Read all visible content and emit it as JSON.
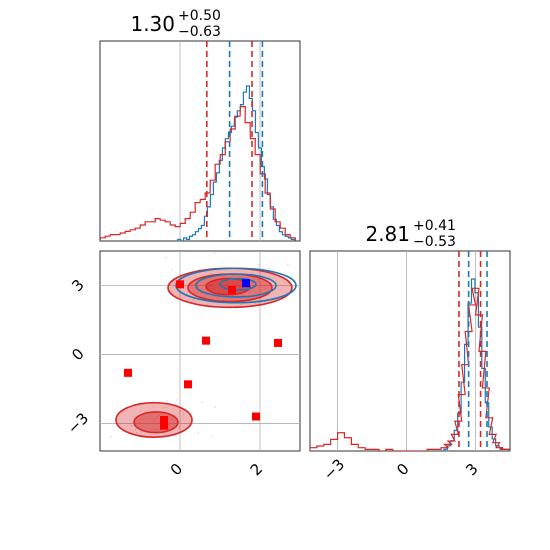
{
  "chart_data": {
    "type": "corner",
    "grid": true,
    "colors": {
      "model_a": "#1f77b4",
      "model_b": "#d62728",
      "grid": "#b0b0b0",
      "marker_blue": "#0000ff",
      "marker_red": "#ff0000"
    },
    "panels": {
      "top_left": {
        "type": "histogram",
        "title": {
          "main": "1.30",
          "plus": "+0.50",
          "minus": "−0.63"
        },
        "xlim": [
          -2.0,
          3.0
        ],
        "quantiles_a": [
          1.24,
          2.06
        ],
        "quantiles_b": [
          0.67,
          1.8
        ],
        "hist_a": {
          "x": [
            -0.02,
            0.05,
            0.13,
            0.2,
            0.27,
            0.35,
            0.42,
            0.5,
            0.57,
            0.65,
            0.72,
            0.8,
            0.87,
            0.95,
            1.02,
            1.1,
            1.17,
            1.25,
            1.32,
            1.4,
            1.47,
            1.55,
            1.62,
            1.7,
            1.77,
            1.85,
            1.92,
            2.0,
            2.07,
            2.15,
            2.22,
            2.3,
            2.37,
            2.45,
            2.52,
            2.6,
            2.67,
            2.75,
            2.82
          ],
          "counts": [
            1,
            0,
            2,
            1,
            3,
            4,
            6,
            8,
            10,
            16,
            22,
            30,
            38,
            44,
            52,
            60,
            66,
            70,
            74,
            80,
            84,
            88,
            96,
            100,
            92,
            84,
            70,
            60,
            48,
            40,
            30,
            22,
            14,
            10,
            6,
            4,
            3,
            2,
            1
          ]
        },
        "hist_b": {
          "x": [
            -1.93,
            -1.81,
            -1.68,
            -1.56,
            -1.43,
            -1.31,
            -1.18,
            -1.06,
            -0.93,
            -0.81,
            -0.68,
            -0.56,
            -0.43,
            -0.31,
            -0.18,
            -0.06,
            0.07,
            0.19,
            0.32,
            0.44,
            0.57,
            0.69,
            0.82,
            0.94,
            1.07,
            1.19,
            1.32,
            1.44,
            1.57,
            1.69,
            1.82,
            1.94,
            2.07,
            2.19,
            2.32,
            2.44,
            2.57,
            2.69,
            2.82
          ],
          "counts": [
            2,
            3,
            4,
            4,
            5,
            6,
            7,
            8,
            10,
            12,
            12,
            14,
            13,
            12,
            10,
            9,
            11,
            14,
            18,
            24,
            26,
            30,
            38,
            48,
            54,
            62,
            70,
            78,
            84,
            74,
            64,
            54,
            42,
            30,
            20,
            12,
            8,
            4,
            2
          ]
        }
      },
      "bottom_left": {
        "type": "scatter-contour",
        "xlim": [
          -2.0,
          3.0
        ],
        "ylim": [
          -4.2,
          4.5
        ],
        "xticks": [
          0,
          2
        ],
        "yticks": [
          -3,
          0,
          3
        ],
        "xtick_labels": [
          "0",
          "2"
        ],
        "ytick_labels": [
          "−3",
          "0",
          "3"
        ],
        "contours_a": [
          {
            "cx": 1.4,
            "cy": 3.0,
            "rx": 1.5,
            "ry": 0.75
          },
          {
            "cx": 1.4,
            "cy": 3.0,
            "rx": 1.0,
            "ry": 0.5
          },
          {
            "cx": 1.45,
            "cy": 3.05,
            "rx": 0.45,
            "ry": 0.25
          }
        ],
        "contours_b": [
          {
            "cx": 1.25,
            "cy": 2.9,
            "rx": 1.55,
            "ry": 0.85,
            "fill_opacity": 0.35
          },
          {
            "cx": 1.25,
            "cy": 2.9,
            "rx": 1.05,
            "ry": 0.6,
            "fill_opacity": 0.45
          },
          {
            "cx": 1.2,
            "cy": 2.95,
            "rx": 0.55,
            "ry": 0.35,
            "fill_opacity": 0.55
          },
          {
            "cx": -0.65,
            "cy": -2.85,
            "rx": 0.95,
            "ry": 0.75,
            "fill_opacity": 0.35
          },
          {
            "cx": -0.6,
            "cy": -2.95,
            "rx": 0.55,
            "ry": 0.45,
            "fill_opacity": 0.5
          }
        ],
        "points_red": [
          {
            "x": 0.0,
            "y": 3.05
          },
          {
            "x": 1.3,
            "y": 2.8
          },
          {
            "x": 0.65,
            "y": 0.6
          },
          {
            "x": 2.45,
            "y": 0.5
          },
          {
            "x": -1.3,
            "y": -0.8
          },
          {
            "x": 0.2,
            "y": -1.3
          },
          {
            "x": 1.9,
            "y": -2.7
          },
          {
            "x": -0.4,
            "y": -2.85
          },
          {
            "x": -0.4,
            "y": -3.1
          }
        ],
        "points_blue": [
          {
            "x": 1.65,
            "y": 3.1
          }
        ]
      },
      "bottom_right": {
        "type": "histogram",
        "title": {
          "main": "2.81",
          "plus": "+0.41",
          "minus": "−0.53"
        },
        "xlim": [
          -4.2,
          4.5
        ],
        "xticks": [
          -3,
          0,
          3
        ],
        "xtick_labels": [
          "−3",
          "0",
          "3"
        ],
        "quantiles_a": [
          2.7,
          3.5
        ],
        "quantiles_b": [
          2.28,
          3.22
        ],
        "hist_a": {
          "x": [
            1.7,
            1.85,
            2.0,
            2.15,
            2.3,
            2.45,
            2.6,
            2.75,
            2.9,
            3.05,
            3.2,
            3.35,
            3.5,
            3.65,
            3.8,
            3.95,
            4.1,
            4.25,
            4.4
          ],
          "counts": [
            1,
            3,
            6,
            12,
            22,
            40,
            62,
            86,
            100,
            92,
            72,
            48,
            28,
            14,
            7,
            3,
            2,
            1,
            1
          ]
        },
        "hist_b": {
          "x": [
            -4.05,
            -3.75,
            -3.45,
            -3.15,
            -2.85,
            -2.55,
            -2.25,
            -1.95,
            -1.65,
            -1.35,
            -1.05,
            -0.75,
            -0.45,
            -0.15,
            0.15,
            0.45,
            0.75,
            1.05,
            1.35,
            1.65,
            1.8,
            1.95,
            2.1,
            2.25,
            2.4,
            2.55,
            2.7,
            2.85,
            3.0,
            3.15,
            3.3,
            3.45,
            3.6,
            3.75,
            3.9,
            4.05,
            4.2,
            4.35
          ],
          "counts": [
            2,
            3,
            4,
            7,
            11,
            8,
            4,
            2,
            1,
            1,
            0,
            1,
            0,
            0,
            0,
            0,
            0,
            1,
            1,
            2,
            4,
            6,
            10,
            18,
            34,
            52,
            72,
            88,
            98,
            82,
            60,
            38,
            20,
            10,
            5,
            2,
            1,
            1
          ]
        }
      }
    }
  }
}
